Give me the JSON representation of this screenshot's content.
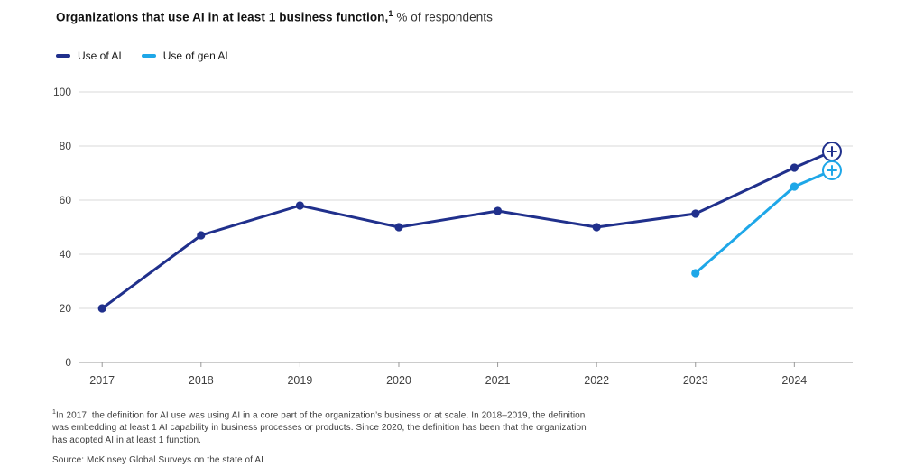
{
  "title": {
    "bold": "Organizations that use AI in at least 1 business function,",
    "sup": "1",
    "normal": " % of respondents"
  },
  "legend": [
    {
      "label": "Use of AI",
      "color": "#20308c"
    },
    {
      "label": "Use of gen AI",
      "color": "#1ea7e8"
    }
  ],
  "chart_data": {
    "type": "line",
    "title": "Organizations that use AI in at least 1 business function, % of respondents",
    "xlabel": "",
    "ylabel": "% of respondents",
    "x_ticks": [
      2017,
      2018,
      2019,
      2020,
      2021,
      2022,
      2023,
      2024
    ],
    "y_ticks": [
      0,
      20,
      40,
      60,
      80,
      100
    ],
    "xlim": [
      2016.77,
      2024.59
    ],
    "ylim": [
      0,
      100
    ],
    "grid": "horizontal",
    "legend_position": "top-left",
    "series": [
      {
        "name": "Use of AI",
        "color": "#20308c",
        "end_marker": "plus-circle",
        "points": [
          [
            2017,
            20
          ],
          [
            2018,
            47
          ],
          [
            2019,
            58
          ],
          [
            2020,
            50
          ],
          [
            2021,
            56
          ],
          [
            2022,
            50
          ],
          [
            2023,
            55
          ],
          [
            2024,
            72
          ],
          [
            2024.38,
            78
          ]
        ]
      },
      {
        "name": "Use of gen AI",
        "color": "#1ea7e8",
        "end_marker": "plus-circle",
        "points": [
          [
            2023,
            33
          ],
          [
            2024,
            65
          ],
          [
            2024.38,
            71
          ]
        ]
      }
    ]
  },
  "footnote": {
    "marker": "1",
    "lines": [
      "In 2017, the definition for AI use was using AI in a core part of the organization’s business or at scale. In 2018–2019, the definition",
      "was embedding at least 1 AI capability in business processes or products. Since 2020, the definition has been that the organization",
      "has adopted AI in at least 1 function."
    ]
  },
  "source": "Source: McKinsey Global Surveys on the state of AI",
  "colors": {
    "gridline": "#d9d9d9",
    "axis": "#999999",
    "tick_label": "#404040"
  }
}
